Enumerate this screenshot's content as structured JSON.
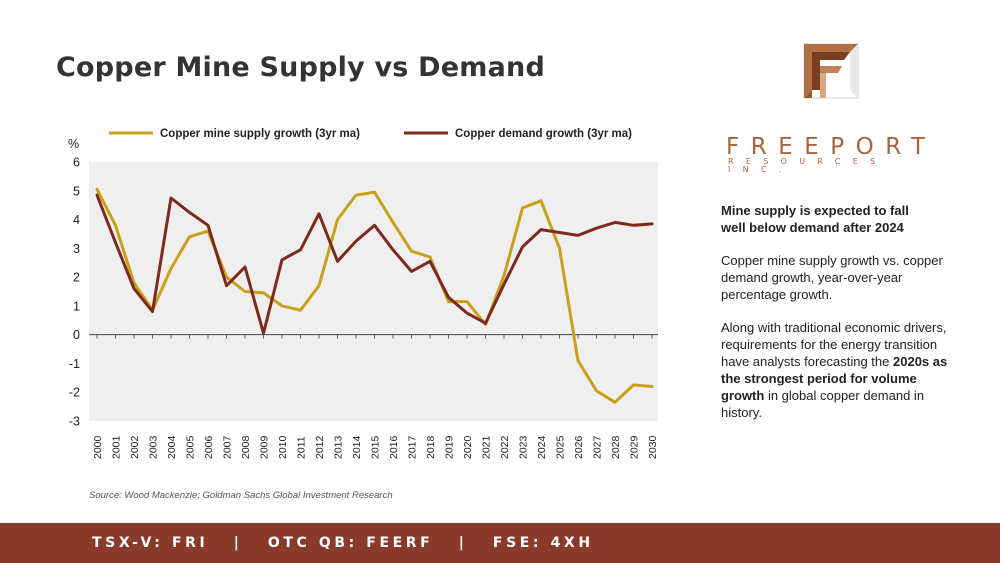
{
  "title": "Copper Mine Supply vs Demand",
  "logo": {
    "wordmark": "FREEPORT",
    "subline": "RESOURCES INC.",
    "colors": {
      "copper": "#b07045",
      "dark": "#7a3f22",
      "light": "#d9a883",
      "silver": "#c9c9c9"
    }
  },
  "side": {
    "headline": "Mine supply is expected to fall well below demand after 2024",
    "para1": "Copper mine supply growth vs. copper demand growth, year-over-year percentage growth.",
    "para2_a": "Along with traditional economic drivers, requirements for the energy transition have analysts forecasting the ",
    "para2_b": "2020s as the strongest period for volume growth",
    "para2_c": " in global copper demand in history."
  },
  "source": "Source:  Wood Mackenzie; Goldman Sachs Global Investment Research",
  "footer": "TSX-V: FRI   |   OTC QB: FEERF   |   FSE: 4XH",
  "chart_data": {
    "type": "line",
    "ylabel": "%",
    "ylim": [
      -3,
      6
    ],
    "yticks": [
      6,
      5,
      4,
      3,
      2,
      1,
      0,
      -1,
      -2,
      -3
    ],
    "x": [
      "2000",
      "2001",
      "2002",
      "2003",
      "2004",
      "2005",
      "2006",
      "2007",
      "2008",
      "2009",
      "2010",
      "2011",
      "2012",
      "2013",
      "2014",
      "2015",
      "2016",
      "2017",
      "2018",
      "2019",
      "2020",
      "2021",
      "2022",
      "2023",
      "2024",
      "2025",
      "2026",
      "2027",
      "2028",
      "2029",
      "2030"
    ],
    "legend_position": "top",
    "plot_background": "#efefef",
    "series": [
      {
        "name": "Copper mine supply growth (3yr ma)",
        "color": "#c9a01a",
        "values": [
          5.05,
          3.8,
          1.8,
          0.85,
          2.3,
          3.4,
          3.6,
          2.0,
          1.5,
          1.45,
          1.0,
          0.85,
          1.7,
          4.0,
          4.85,
          4.95,
          3.9,
          2.9,
          2.7,
          1.15,
          1.15,
          0.35,
          2.05,
          4.4,
          4.65,
          3.0,
          -0.9,
          -1.95,
          -2.35,
          -1.75,
          -1.8
        ]
      },
      {
        "name": "Copper demand growth (3yr ma)",
        "color": "#7d2a1e",
        "values": [
          4.85,
          3.2,
          1.6,
          0.8,
          4.75,
          4.25,
          3.8,
          1.7,
          2.35,
          0.05,
          2.6,
          2.95,
          4.2,
          2.55,
          3.25,
          3.8,
          2.95,
          2.2,
          2.55,
          1.3,
          0.75,
          0.4,
          1.75,
          3.05,
          3.65,
          3.55,
          3.45,
          3.7,
          3.9,
          3.8,
          3.85
        ]
      }
    ]
  }
}
